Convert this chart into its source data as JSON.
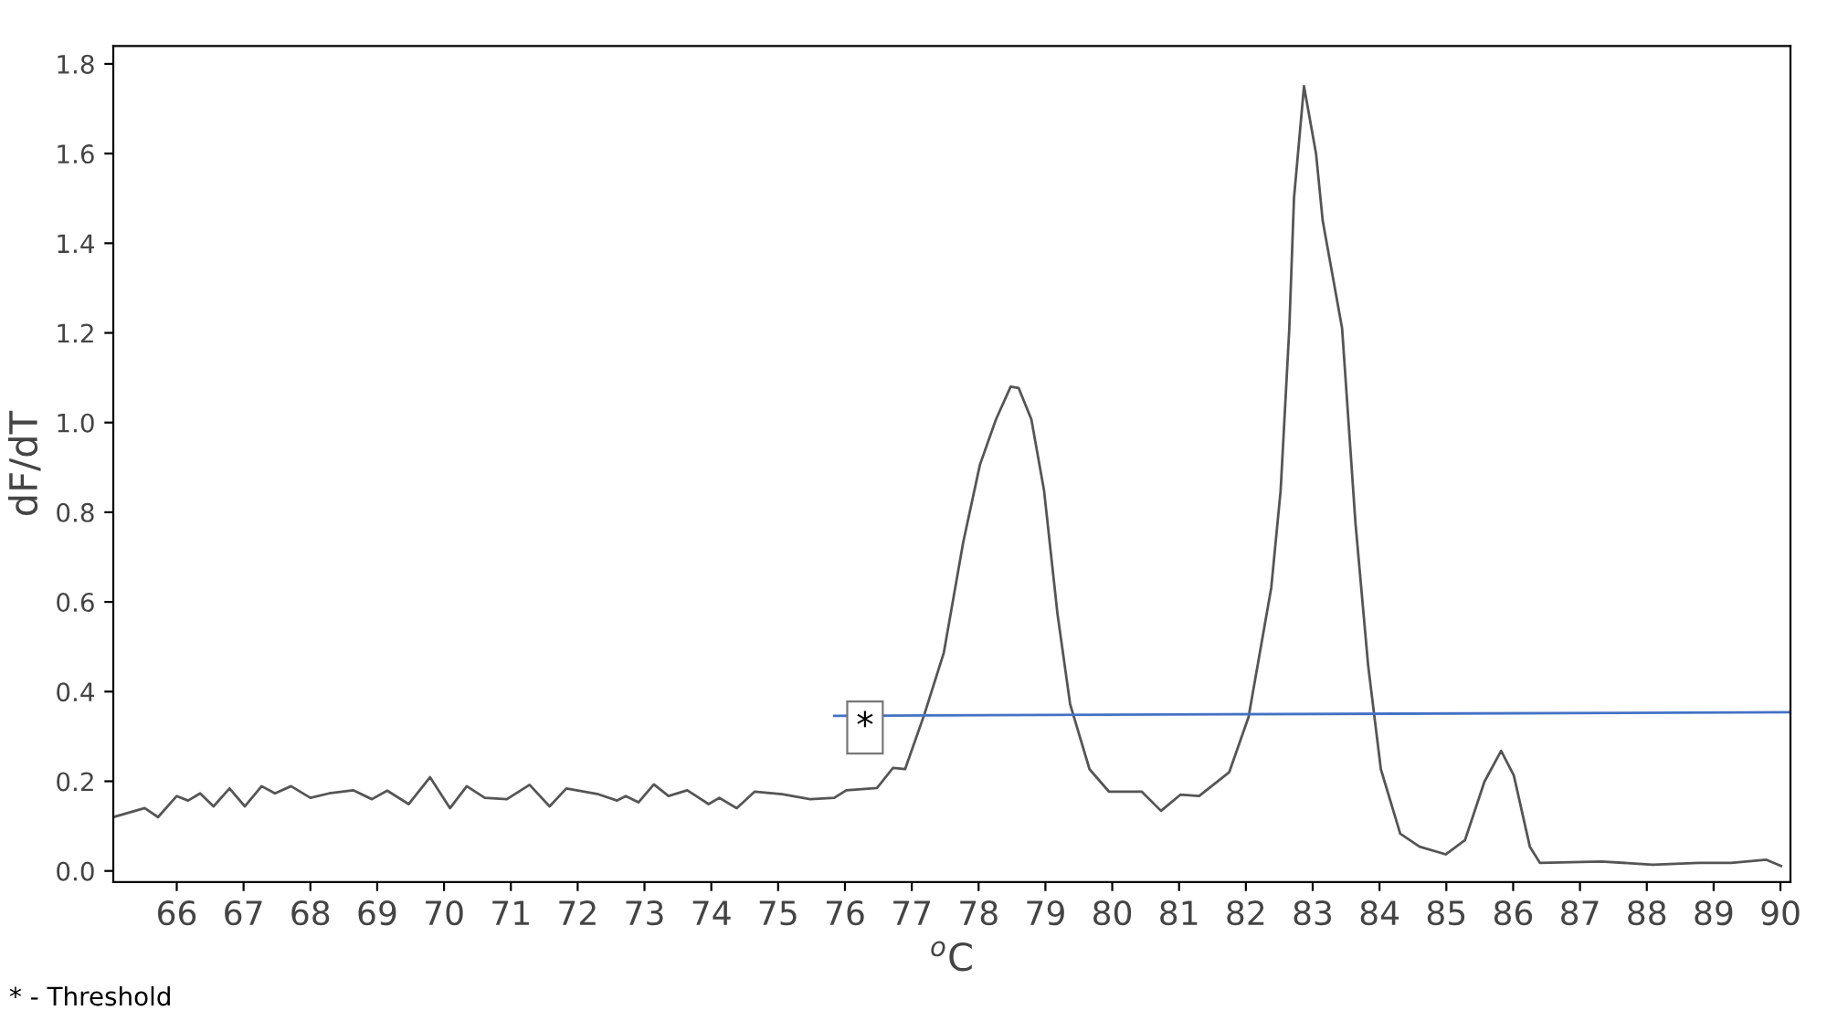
{
  "chart_data": {
    "type": "line",
    "xlabel": "$^{o}$C",
    "ylabel": "dF/dT",
    "xlim": [
      65.05,
      90.15
    ],
    "ylim": [
      -0.025,
      1.84
    ],
    "xticks": [
      66,
      67,
      68,
      69,
      70,
      71,
      72,
      73,
      74,
      75,
      76,
      77,
      78,
      79,
      80,
      81,
      82,
      83,
      84,
      85,
      86,
      87,
      88,
      89,
      90
    ],
    "yticks": [
      {
        "value": 0,
        "label": "0.0"
      },
      {
        "value": 0.2,
        "label": "0.2"
      },
      {
        "value": 0.4,
        "label": "0.4"
      },
      {
        "value": 0.6,
        "label": "0.6"
      },
      {
        "value": 0.8,
        "label": "0.8"
      },
      {
        "value": 1.0,
        "label": "1.0"
      },
      {
        "value": 1.2,
        "label": "1.2"
      },
      {
        "value": 1.4,
        "label": "1.4"
      },
      {
        "value": 1.6,
        "label": "1.6"
      },
      {
        "value": 1.8,
        "label": "1.8"
      }
    ],
    "grid": false,
    "legend": false,
    "marker": "none",
    "line_style": "solid",
    "series": [
      {
        "color": "#555555",
        "x": [
          65.05,
          65.52,
          65.72,
          66.0,
          66.17,
          66.35,
          66.55,
          66.79,
          67.02,
          67.27,
          67.47,
          67.71,
          68.0,
          68.28,
          68.64,
          68.92,
          69.15,
          69.47,
          69.79,
          70.09,
          70.34,
          70.61,
          70.94,
          71.28,
          71.58,
          71.83,
          72.31,
          72.59,
          72.72,
          72.91,
          73.14,
          73.36,
          73.64,
          73.96,
          74.12,
          74.38,
          74.65,
          75.06,
          75.48,
          75.84,
          76.02,
          76.48,
          76.72,
          76.9,
          77.19,
          77.48,
          77.77,
          78.02,
          78.26,
          78.48,
          78.6,
          78.79,
          78.98,
          79.18,
          79.37,
          79.66,
          79.95,
          80.44,
          80.73,
          81.02,
          81.3,
          81.75,
          82.04,
          82.38,
          82.52,
          82.65,
          82.72,
          82.87,
          83.05,
          83.15,
          83.44,
          83.64,
          83.83,
          84.02,
          84.31,
          84.6,
          84.99,
          85.28,
          85.57,
          85.82,
          86.01,
          86.25,
          86.4,
          87.32,
          88.09,
          88.77,
          89.26,
          89.79,
          90.01
        ],
        "values": [
          0.12,
          0.14,
          0.12,
          0.167,
          0.157,
          0.173,
          0.144,
          0.184,
          0.144,
          0.189,
          0.173,
          0.189,
          0.163,
          0.173,
          0.18,
          0.16,
          0.179,
          0.149,
          0.209,
          0.14,
          0.189,
          0.163,
          0.16,
          0.192,
          0.144,
          0.184,
          0.171,
          0.157,
          0.167,
          0.153,
          0.193,
          0.167,
          0.18,
          0.149,
          0.163,
          0.14,
          0.177,
          0.171,
          0.16,
          0.163,
          0.18,
          0.185,
          0.23,
          0.227,
          0.35,
          0.487,
          0.733,
          0.906,
          1.007,
          1.08,
          1.077,
          1.007,
          0.848,
          0.574,
          0.372,
          0.227,
          0.177,
          0.177,
          0.134,
          0.17,
          0.167,
          0.22,
          0.343,
          0.632,
          0.848,
          1.21,
          1.5,
          1.75,
          1.6,
          1.45,
          1.21,
          0.776,
          0.458,
          0.227,
          0.083,
          0.054,
          0.037,
          0.069,
          0.199,
          0.268,
          0.213,
          0.054,
          0.018,
          0.021,
          0.014,
          0.018,
          0.018,
          0.025,
          0.011
        ]
      },
      {
        "color": "#4472c4",
        "x": [
          75.84,
          90.14
        ],
        "values": [
          0.346,
          0.354
        ]
      }
    ],
    "annotations": [
      {
        "text": "*",
        "x": 76.3,
        "y": 0.32
      },
      "* - Threshold"
    ]
  }
}
